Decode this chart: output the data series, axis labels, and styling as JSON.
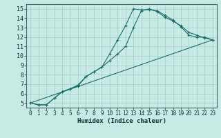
{
  "xlabel": "Humidex (Indice chaleur)",
  "xlim": [
    -0.5,
    23.5
  ],
  "ylim": [
    4.5,
    15.5
  ],
  "xticks": [
    0,
    1,
    2,
    3,
    4,
    5,
    6,
    7,
    8,
    9,
    10,
    11,
    12,
    13,
    14,
    15,
    16,
    17,
    18,
    19,
    20,
    21,
    22,
    23
  ],
  "yticks": [
    5,
    6,
    7,
    8,
    9,
    10,
    11,
    12,
    13,
    14,
    15
  ],
  "background_color": "#c8eae4",
  "line_color": "#1a6b6b",
  "grid_color": "#a0ccc6",
  "series": [
    {
      "x": [
        0,
        1,
        2,
        3,
        4,
        5,
        6,
        7,
        8,
        9,
        10,
        11,
        12,
        13,
        14,
        15,
        16,
        17,
        18,
        19,
        20,
        21,
        22,
        23
      ],
      "y": [
        5.0,
        4.8,
        4.8,
        5.5,
        6.2,
        6.5,
        6.8,
        7.8,
        8.3,
        8.8,
        10.2,
        11.7,
        13.2,
        15.0,
        14.9,
        14.9,
        14.8,
        14.3,
        13.8,
        13.1,
        12.2,
        12.0,
        12.0,
        11.7
      ]
    },
    {
      "x": [
        0,
        1,
        2,
        3,
        4,
        5,
        6,
        7,
        8,
        9,
        10,
        11,
        12,
        13,
        14,
        15,
        16,
        17,
        18,
        19,
        20,
        21,
        22,
        23
      ],
      "y": [
        5.0,
        4.8,
        4.8,
        5.5,
        6.2,
        6.5,
        6.9,
        7.8,
        8.3,
        8.8,
        9.5,
        10.2,
        11.0,
        13.0,
        14.8,
        15.0,
        14.7,
        14.1,
        13.7,
        13.2,
        12.5,
        12.2,
        11.9,
        11.7
      ]
    },
    {
      "x": [
        0,
        23
      ],
      "y": [
        5.0,
        11.7
      ]
    }
  ]
}
